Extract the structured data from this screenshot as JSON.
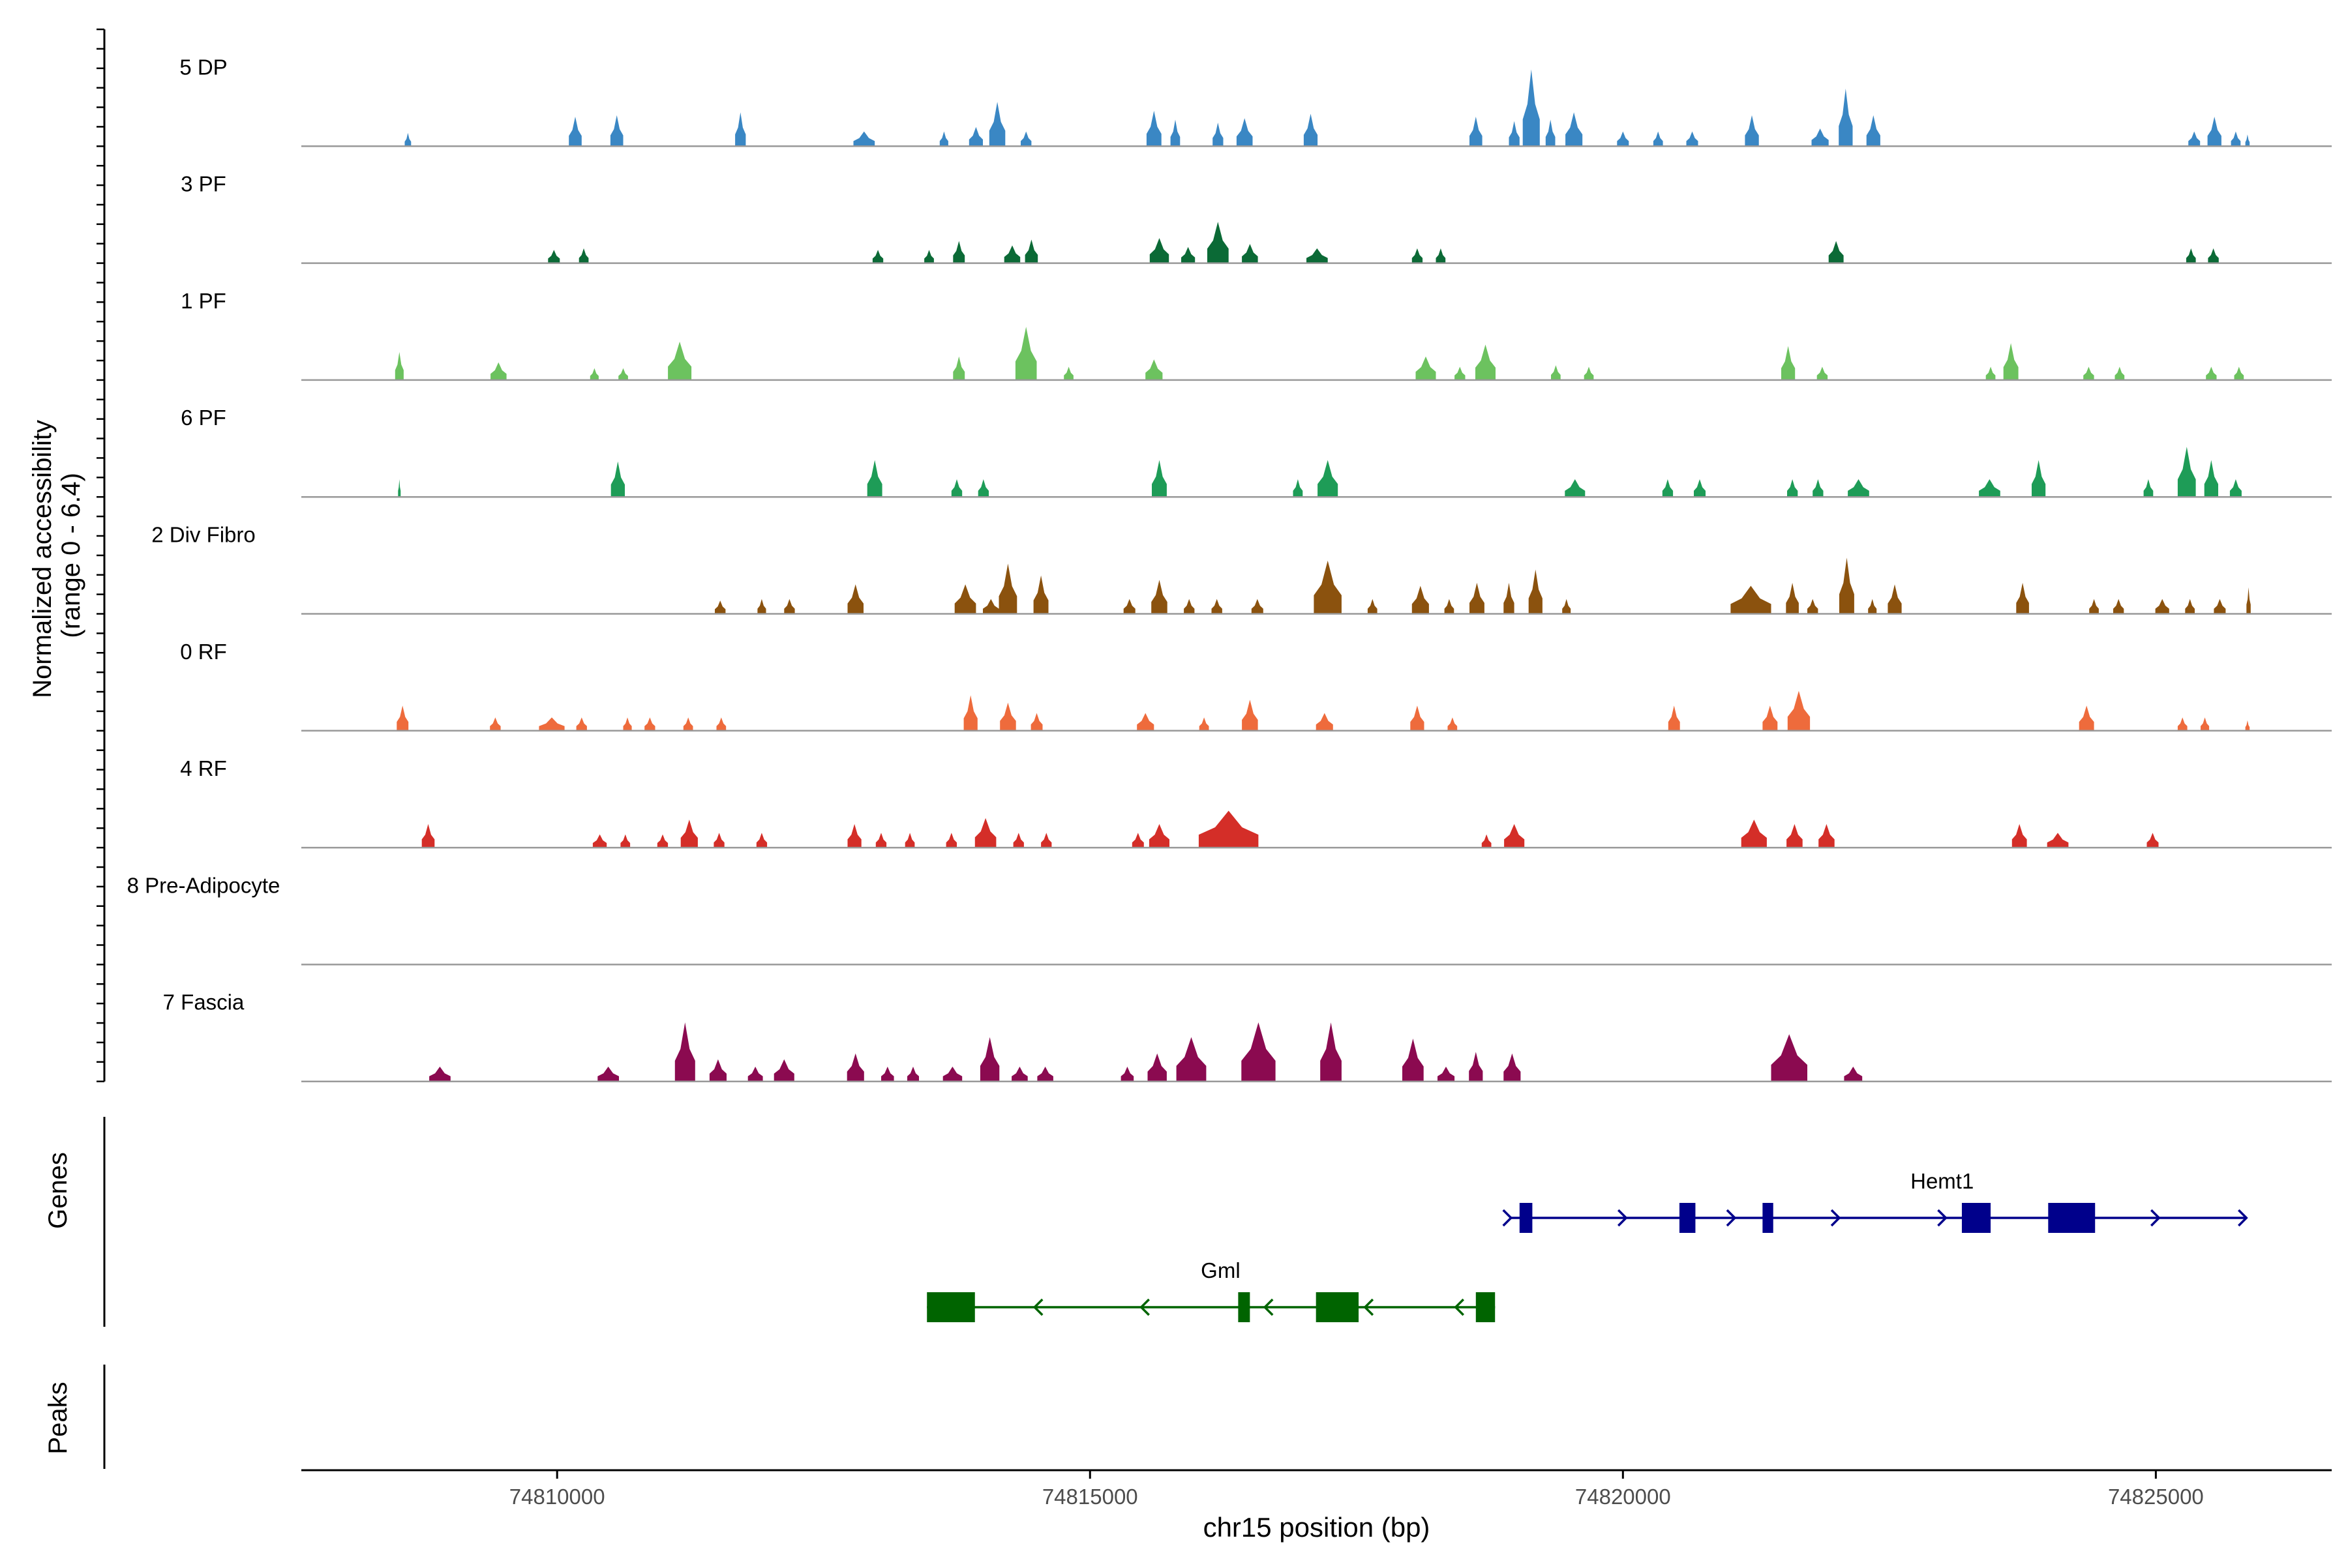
{
  "chart_data": {
    "type": "area",
    "title": "",
    "xlabel": "chr15 position (bp)",
    "ylabel_line1": "Normalized accessibility",
    "ylabel_line2": "(range 0 - 6.4)",
    "xlim": [
      74807600,
      74826650
    ],
    "ylim": [
      0,
      6.4
    ],
    "x_ticks": [
      74810000,
      74815000,
      74820000,
      74825000
    ],
    "x_tick_labels": [
      "74810000",
      "74815000",
      "74820000",
      "74825000"
    ],
    "genes_label": "Genes",
    "peaks_label": "Peaks",
    "colors": {
      "axis": "#000000",
      "baseline": "#999999",
      "tick_label": "#4d4d4d"
    },
    "tracks": [
      {
        "name": "5 DP",
        "color": "#3a87c4",
        "peaks": [
          [
            74808600,
            0.9,
            60
          ],
          [
            74810170,
            2.0,
            120
          ],
          [
            74810560,
            2.1,
            120
          ],
          [
            74811720,
            2.3,
            100
          ],
          [
            74812880,
            1.0,
            200
          ],
          [
            74813630,
            1.0,
            80
          ],
          [
            74813930,
            1.3,
            130
          ],
          [
            74814130,
            3.0,
            150
          ],
          [
            74814400,
            1.0,
            100
          ],
          [
            74815600,
            2.4,
            140
          ],
          [
            74815800,
            1.8,
            90
          ],
          [
            74816200,
            1.6,
            100
          ],
          [
            74816450,
            1.9,
            150
          ],
          [
            74817070,
            2.2,
            130
          ],
          [
            74818620,
            2.0,
            120
          ],
          [
            74818980,
            1.7,
            100
          ],
          [
            74819140,
            5.2,
            160
          ],
          [
            74819320,
            1.8,
            90
          ],
          [
            74819540,
            2.3,
            160
          ],
          [
            74820000,
            1.0,
            110
          ],
          [
            74820330,
            1.0,
            90
          ],
          [
            74820650,
            1.0,
            110
          ],
          [
            74821210,
            2.1,
            130
          ],
          [
            74821850,
            1.2,
            160
          ],
          [
            74822090,
            3.9,
            130
          ],
          [
            74822350,
            2.1,
            130
          ],
          [
            74825360,
            1.0,
            110
          ],
          [
            74825550,
            2.0,
            130
          ],
          [
            74825750,
            1.0,
            90
          ],
          [
            74825860,
            0.8,
            40
          ]
        ]
      },
      {
        "name": "3 PF",
        "color": "#0b6a36",
        "peaks": [
          [
            74809970,
            0.9,
            110
          ],
          [
            74810250,
            1.0,
            90
          ],
          [
            74813010,
            0.9,
            100
          ],
          [
            74813490,
            0.9,
            90
          ],
          [
            74813770,
            1.5,
            110
          ],
          [
            74814270,
            1.2,
            150
          ],
          [
            74814450,
            1.6,
            120
          ],
          [
            74815650,
            1.7,
            180
          ],
          [
            74815920,
            1.1,
            130
          ],
          [
            74816200,
            2.8,
            200
          ],
          [
            74816500,
            1.3,
            150
          ],
          [
            74817130,
            1.0,
            200
          ],
          [
            74818070,
            1.0,
            100
          ],
          [
            74818290,
            1.0,
            90
          ],
          [
            74822000,
            1.5,
            140
          ],
          [
            74825330,
            1.0,
            90
          ],
          [
            74825540,
            1.0,
            100
          ]
        ]
      },
      {
        "name": "1 PF",
        "color": "#6cc25f",
        "peaks": [
          [
            74808520,
            1.9,
            80
          ],
          [
            74809450,
            1.2,
            150
          ],
          [
            74810350,
            0.8,
            80
          ],
          [
            74810620,
            0.8,
            90
          ],
          [
            74811150,
            2.6,
            220
          ],
          [
            74813770,
            1.6,
            110
          ],
          [
            74814400,
            3.6,
            200
          ],
          [
            74814800,
            0.9,
            90
          ],
          [
            74815600,
            1.4,
            160
          ],
          [
            74818150,
            1.6,
            190
          ],
          [
            74818470,
            0.9,
            100
          ],
          [
            74818710,
            2.4,
            190
          ],
          [
            74819370,
            1.0,
            90
          ],
          [
            74819680,
            0.9,
            90
          ],
          [
            74821550,
            2.3,
            130
          ],
          [
            74821870,
            0.9,
            100
          ],
          [
            74823450,
            0.9,
            90
          ],
          [
            74823640,
            2.5,
            140
          ],
          [
            74824370,
            0.9,
            100
          ],
          [
            74824660,
            0.9,
            90
          ],
          [
            74825520,
            0.9,
            100
          ],
          [
            74825780,
            0.9,
            90
          ]
        ]
      },
      {
        "name": "6 PF",
        "color": "#1e9c57",
        "peaks": [
          [
            74808520,
            1.2,
            18
          ],
          [
            74810570,
            2.4,
            130
          ],
          [
            74812980,
            2.5,
            140
          ],
          [
            74813750,
            1.2,
            100
          ],
          [
            74814000,
            1.2,
            100
          ],
          [
            74815650,
            2.5,
            140
          ],
          [
            74816950,
            1.2,
            90
          ],
          [
            74817230,
            2.5,
            190
          ],
          [
            74819550,
            1.2,
            190
          ],
          [
            74820420,
            1.2,
            100
          ],
          [
            74820720,
            1.2,
            110
          ],
          [
            74821590,
            1.2,
            100
          ],
          [
            74821830,
            1.2,
            100
          ],
          [
            74822210,
            1.2,
            200
          ],
          [
            74823440,
            1.2,
            200
          ],
          [
            74823900,
            2.5,
            130
          ],
          [
            74824930,
            1.2,
            90
          ],
          [
            74825290,
            3.4,
            170
          ],
          [
            74825520,
            2.5,
            130
          ],
          [
            74825750,
            1.2,
            110
          ]
        ]
      },
      {
        "name": "2 Div Fibro",
        "color": "#8b520e",
        "peaks": [
          [
            74811530,
            0.9,
            100
          ],
          [
            74811920,
            1.0,
            80
          ],
          [
            74812180,
            1.0,
            100
          ],
          [
            74812800,
            2.0,
            150
          ],
          [
            74813830,
            2.0,
            200
          ],
          [
            74814070,
            1.0,
            150
          ],
          [
            74814230,
            3.4,
            170
          ],
          [
            74814540,
            2.6,
            140
          ],
          [
            74815370,
            1.0,
            110
          ],
          [
            74815650,
            2.3,
            150
          ],
          [
            74815930,
            1.0,
            100
          ],
          [
            74816190,
            1.0,
            100
          ],
          [
            74816570,
            1.0,
            110
          ],
          [
            74817230,
            3.6,
            260
          ],
          [
            74817650,
            1.0,
            90
          ],
          [
            74818100,
            1.9,
            160
          ],
          [
            74818370,
            1.0,
            90
          ],
          [
            74818630,
            2.1,
            140
          ],
          [
            74818930,
            2.1,
            100
          ],
          [
            74819180,
            3.0,
            130
          ],
          [
            74819470,
            1.0,
            80
          ],
          [
            74821200,
            1.9,
            380
          ],
          [
            74821590,
            2.1,
            120
          ],
          [
            74821780,
            1.0,
            100
          ],
          [
            74822100,
            3.8,
            140
          ],
          [
            74822340,
            1.0,
            80
          ],
          [
            74822550,
            2.0,
            130
          ],
          [
            74823750,
            2.1,
            120
          ],
          [
            74824420,
            1.0,
            90
          ],
          [
            74824650,
            1.0,
            100
          ],
          [
            74825060,
            1.0,
            130
          ],
          [
            74825320,
            1.0,
            90
          ],
          [
            74825600,
            1.0,
            110
          ],
          [
            74825870,
            1.8,
            40
          ]
        ]
      },
      {
        "name": "0 RF",
        "color": "#ee6b3c",
        "peaks": [
          [
            74808550,
            1.7,
            110
          ],
          [
            74809420,
            0.9,
            100
          ],
          [
            74809950,
            0.9,
            240
          ],
          [
            74810230,
            0.9,
            100
          ],
          [
            74810660,
            0.9,
            80
          ],
          [
            74810870,
            0.9,
            100
          ],
          [
            74811230,
            0.9,
            90
          ],
          [
            74811540,
            0.9,
            90
          ],
          [
            74813880,
            2.4,
            130
          ],
          [
            74814230,
            1.9,
            150
          ],
          [
            74814500,
            1.2,
            110
          ],
          [
            74815520,
            1.2,
            160
          ],
          [
            74816070,
            0.9,
            90
          ],
          [
            74816500,
            2.1,
            150
          ],
          [
            74817200,
            1.2,
            160
          ],
          [
            74818070,
            1.7,
            130
          ],
          [
            74818400,
            0.9,
            90
          ],
          [
            74820480,
            1.7,
            110
          ],
          [
            74821380,
            1.7,
            140
          ],
          [
            74821650,
            2.7,
            210
          ],
          [
            74824350,
            1.7,
            140
          ],
          [
            74825250,
            0.9,
            90
          ],
          [
            74825460,
            0.9,
            80
          ],
          [
            74825860,
            0.7,
            40
          ]
        ]
      },
      {
        "name": "4 RF",
        "color": "#d42e28",
        "peaks": [
          [
            74808790,
            1.6,
            120
          ],
          [
            74810400,
            0.9,
            130
          ],
          [
            74810640,
            0.9,
            90
          ],
          [
            74810990,
            0.9,
            100
          ],
          [
            74811240,
            1.9,
            160
          ],
          [
            74811520,
            1.0,
            100
          ],
          [
            74811920,
            1.0,
            100
          ],
          [
            74812790,
            1.6,
            130
          ],
          [
            74813040,
            1.0,
            100
          ],
          [
            74813310,
            1.0,
            90
          ],
          [
            74813700,
            1.0,
            100
          ],
          [
            74814020,
            2.0,
            200
          ],
          [
            74814330,
            1.0,
            100
          ],
          [
            74814590,
            1.0,
            100
          ],
          [
            74815450,
            1.0,
            110
          ],
          [
            74815650,
            1.6,
            190
          ],
          [
            74816300,
            2.5,
            560
          ],
          [
            74818720,
            0.9,
            90
          ],
          [
            74818980,
            1.6,
            190
          ],
          [
            74821230,
            1.9,
            240
          ],
          [
            74821610,
            1.6,
            150
          ],
          [
            74821910,
            1.6,
            150
          ],
          [
            74823720,
            1.6,
            140
          ],
          [
            74824080,
            1.0,
            200
          ],
          [
            74824970,
            1.0,
            110
          ]
        ]
      },
      {
        "name": "8 Pre-Adipocyte",
        "color": "#6b6b6b",
        "peaks": []
      },
      {
        "name": "7 Fascia",
        "color": "#8b0a50",
        "peaks": [
          [
            74808900,
            1.0,
            200
          ],
          [
            74810480,
            1.0,
            200
          ],
          [
            74811200,
            4.0,
            190
          ],
          [
            74811510,
            1.5,
            160
          ],
          [
            74811860,
            1.0,
            140
          ],
          [
            74812130,
            1.5,
            190
          ],
          [
            74812800,
            1.9,
            160
          ],
          [
            74813100,
            1.0,
            120
          ],
          [
            74813340,
            1.0,
            110
          ],
          [
            74813710,
            1.0,
            180
          ],
          [
            74814060,
            3.0,
            180
          ],
          [
            74814340,
            1.0,
            150
          ],
          [
            74814580,
            1.0,
            150
          ],
          [
            74815350,
            1.0,
            120
          ],
          [
            74815630,
            1.9,
            180
          ],
          [
            74815950,
            3.0,
            280
          ],
          [
            74816580,
            4.0,
            320
          ],
          [
            74817260,
            4.0,
            200
          ],
          [
            74818030,
            2.9,
            200
          ],
          [
            74818340,
            1.0,
            160
          ],
          [
            74818620,
            2.0,
            130
          ],
          [
            74818960,
            1.9,
            160
          ],
          [
            74821560,
            3.2,
            340
          ],
          [
            74822160,
            1.0,
            170
          ]
        ]
      }
    ],
    "genes": [
      {
        "name": "Hemt1",
        "color": "#00008b",
        "strand": "+",
        "start": 74818950,
        "end": 74825850,
        "exons": [
          [
            74819030,
            74819150
          ],
          [
            74820530,
            74820680
          ],
          [
            74821310,
            74821410
          ],
          [
            74823180,
            74823450
          ],
          [
            74823990,
            74824430
          ]
        ],
        "arrows": [
          74820030,
          74821050,
          74822030,
          74823030,
          74825030
        ]
      },
      {
        "name": "Gml",
        "color": "#006400",
        "strand": "-",
        "start": 74813470,
        "end": 74818800,
        "exons": [
          [
            74813470,
            74813920
          ],
          [
            74816390,
            74816500
          ],
          [
            74817120,
            74817520
          ],
          [
            74818620,
            74818800
          ]
        ],
        "arrows": [
          74814480,
          74815480,
          74816640,
          74817580,
          74818430
        ]
      }
    ]
  }
}
